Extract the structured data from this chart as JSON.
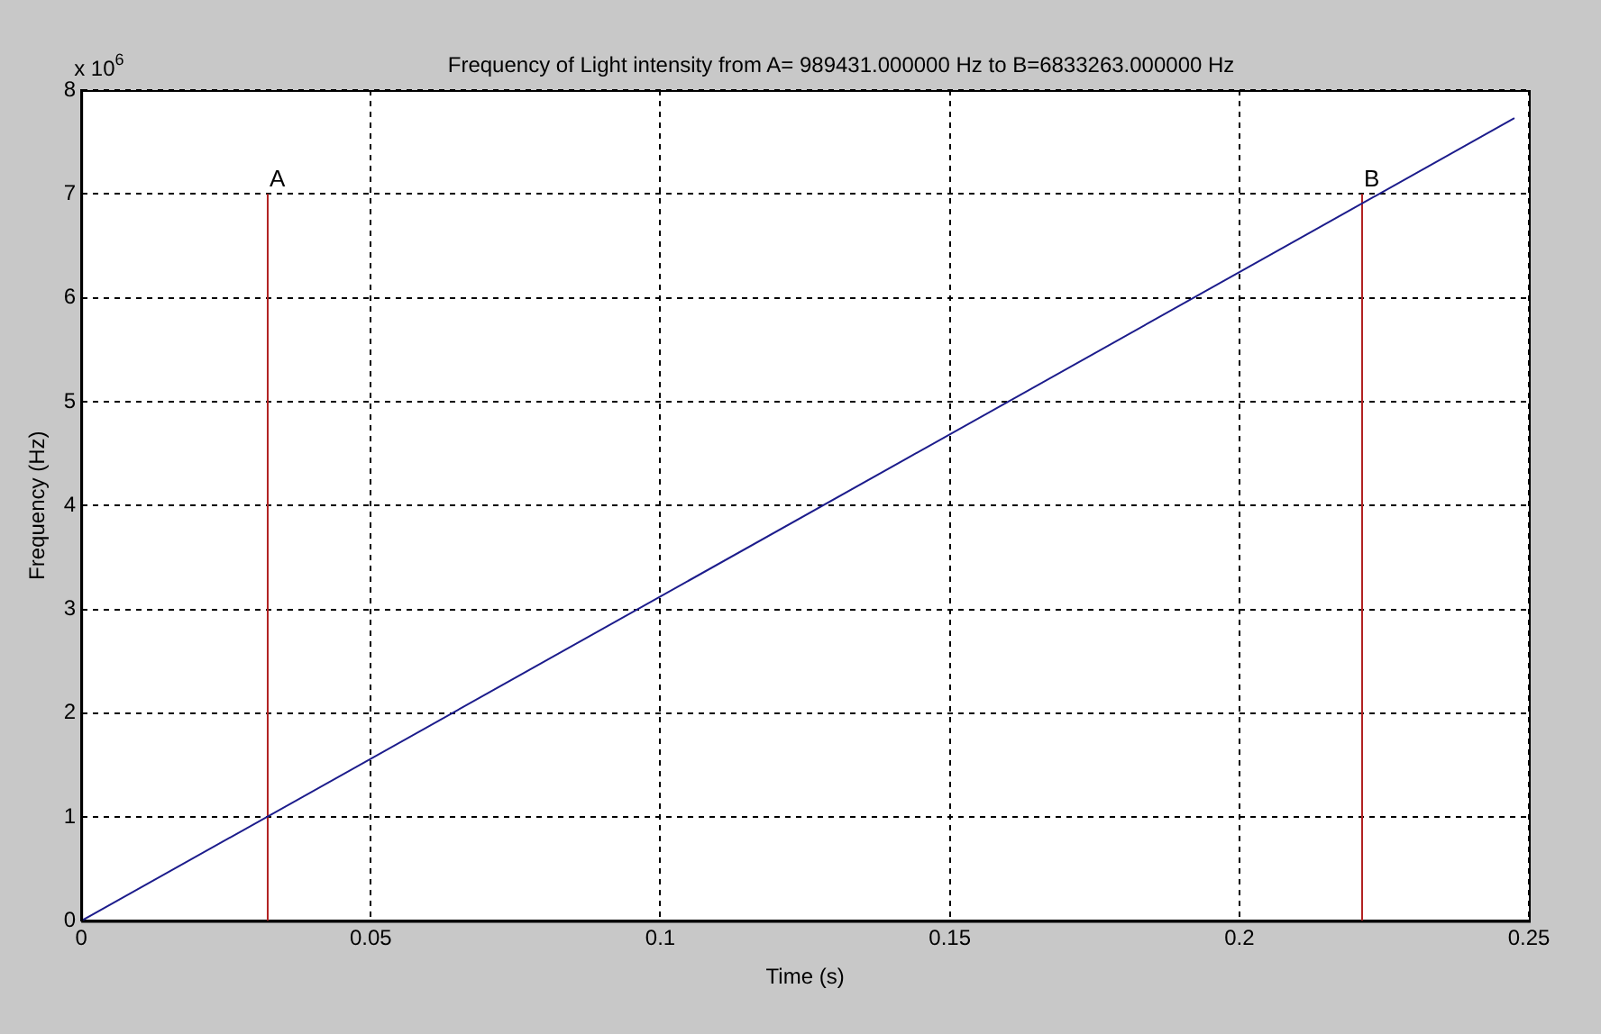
{
  "chart_data": {
    "type": "line",
    "title": "Frequency of Light intensity from A= 989431.000000 Hz to B=6833263.000000 Hz",
    "xlabel": "Time (s)",
    "ylabel": "Frequency (Hz)",
    "series": [
      {
        "x": [
          0,
          0.2475
        ],
        "values": [
          0,
          7.73
        ],
        "color": "#1c1c8c"
      },
      {
        "x": [
          0.0322,
          0.0322
        ],
        "values": [
          0,
          7
        ],
        "color": "#b22222"
      },
      {
        "x": [
          0.2212,
          0.2212
        ],
        "values": [
          0,
          7
        ],
        "color": "#b22222"
      }
    ],
    "annotations": [
      "x 10$^{6}$",
      {
        "text": "A",
        "x": 0.0322,
        "y": 7
      },
      {
        "text": "B",
        "x": 0.2212,
        "y": 7
      }
    ],
    "xlim": [
      0,
      0.25
    ],
    "xticks": [
      0,
      0.05,
      0.1,
      0.15,
      0.2,
      0.25
    ],
    "ylim": [
      0,
      8
    ],
    "yticks": [
      0,
      1,
      2,
      3,
      4,
      5,
      6,
      7,
      8
    ],
    "grid": true,
    "legend": false,
    "marker": "none",
    "line_style": "solid"
  }
}
